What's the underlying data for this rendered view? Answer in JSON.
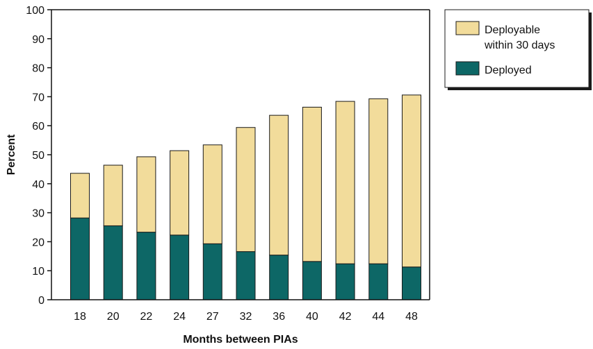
{
  "chart_data": {
    "type": "bar",
    "stacked": true,
    "categories": [
      "18",
      "20",
      "22",
      "24",
      "27",
      "32",
      "36",
      "40",
      "42",
      "44",
      "48"
    ],
    "series": [
      {
        "name": "Deployed",
        "values": [
          28.2,
          25.5,
          23.3,
          22.3,
          19.3,
          16.6,
          15.4,
          13.2,
          12.4,
          12.4,
          11.3
        ],
        "color": "#0d6766"
      },
      {
        "name": "Deployable within 30 days",
        "values": [
          15.4,
          20.9,
          26.0,
          29.1,
          34.1,
          42.8,
          48.2,
          53.2,
          56.0,
          56.9,
          59.3
        ],
        "color": "#f2dc9b"
      }
    ],
    "totals": [
      43.6,
      46.4,
      49.3,
      51.4,
      53.4,
      59.4,
      63.6,
      66.4,
      68.4,
      69.3,
      70.6
    ],
    "xlabel": "Months between PIAs",
    "ylabel": "Percent",
    "ylim": [
      0,
      100
    ],
    "yticks": [
      0,
      10,
      20,
      30,
      40,
      50,
      60,
      70,
      80,
      90,
      100
    ],
    "grid": false,
    "legend": {
      "placement": "top-right",
      "entries": [
        {
          "lines": [
            "Deployable",
            "within 30 days"
          ],
          "series": "Deployable within 30 days"
        },
        {
          "lines": [
            "Deployed"
          ],
          "series": "Deployed"
        }
      ]
    }
  }
}
